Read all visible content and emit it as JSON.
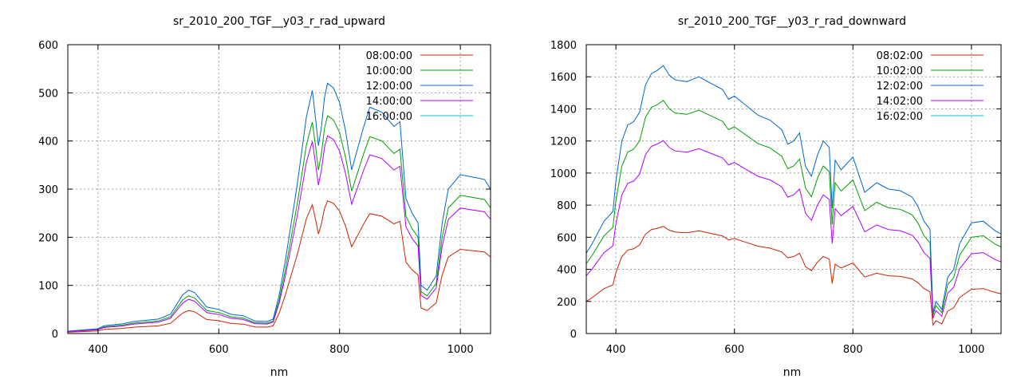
{
  "colors": {
    "s1": "#cc2200",
    "s2": "#00a000",
    "s3": "#0066cc",
    "s4": "#b000ff",
    "s5": "#00c0e0",
    "grid": "#a0a0a0",
    "axis": "#000000"
  },
  "chart_data": [
    {
      "type": "line",
      "title": "sr_2010_200_TGF__y03_r_rad_upward",
      "xlabel": "nm",
      "ylabel": "",
      "xlim": [
        350,
        1050
      ],
      "ylim": [
        0,
        600
      ],
      "xticks": [
        400,
        600,
        800,
        1000
      ],
      "yticks": [
        0,
        100,
        200,
        300,
        400,
        500,
        600
      ],
      "grid": true,
      "legend_position": "top-right",
      "series": [
        {
          "name": "08:00:00",
          "color_key": "s1",
          "scale": 0.53
        },
        {
          "name": "10:00:00",
          "color_key": "s2",
          "scale": 0.87
        },
        {
          "name": "12:00:00",
          "color_key": "s3",
          "scale": 1.0
        },
        {
          "name": "14:00:00",
          "color_key": "s4",
          "scale": 0.79
        },
        {
          "name": "16:00:00",
          "color_key": "s5",
          "scale": 0.0
        }
      ],
      "x": [
        350,
        380,
        400,
        410,
        440,
        460,
        500,
        520,
        540,
        550,
        560,
        580,
        600,
        620,
        640,
        660,
        680,
        690,
        700,
        710,
        730,
        745,
        755,
        760,
        765,
        770,
        775,
        780,
        790,
        800,
        810,
        820,
        840,
        850,
        870,
        890,
        900,
        910,
        920,
        930,
        935,
        945,
        960,
        970,
        980,
        1000,
        1020,
        1040,
        1050
      ],
      "base": [
        5,
        8,
        10,
        16,
        20,
        25,
        30,
        40,
        80,
        90,
        85,
        55,
        50,
        40,
        37,
        26,
        25,
        30,
        80,
        150,
        310,
        450,
        505,
        450,
        390,
        430,
        490,
        520,
        510,
        480,
        420,
        340,
        430,
        470,
        460,
        430,
        440,
        280,
        250,
        230,
        100,
        90,
        120,
        230,
        300,
        330,
        325,
        320,
        300
      ]
    },
    {
      "type": "line",
      "title": "sr_2010_200_TGF__y03_r_rad_downward",
      "xlabel": "nm",
      "ylabel": "",
      "xlim": [
        350,
        1050
      ],
      "ylim": [
        0,
        1800
      ],
      "xticks": [
        400,
        600,
        800,
        1000
      ],
      "yticks": [
        0,
        200,
        400,
        600,
        800,
        1000,
        1200,
        1400,
        1600,
        1800
      ],
      "grid": true,
      "legend_position": "top-right",
      "series": [
        {
          "name": "08:02:00",
          "color_key": "s1",
          "scale": 0.4
        },
        {
          "name": "10:02:00",
          "color_key": "s2",
          "scale": 0.87
        },
        {
          "name": "12:02:00",
          "color_key": "s3",
          "scale": 1.0
        },
        {
          "name": "14:02:00",
          "color_key": "s4",
          "scale": 0.72
        },
        {
          "name": "16:02:00",
          "color_key": "s5",
          "scale": 0.0
        }
      ],
      "x": [
        350,
        360,
        380,
        395,
        400,
        410,
        420,
        430,
        440,
        450,
        460,
        470,
        480,
        490,
        500,
        520,
        540,
        560,
        580,
        590,
        600,
        620,
        640,
        660,
        680,
        690,
        700,
        710,
        720,
        730,
        740,
        750,
        760,
        765,
        770,
        780,
        800,
        820,
        840,
        860,
        880,
        900,
        910,
        920,
        930,
        935,
        940,
        950,
        960,
        970,
        980,
        1000,
        1020,
        1040,
        1050
      ],
      "base": [
        500,
        560,
        700,
        760,
        950,
        1200,
        1300,
        1320,
        1380,
        1550,
        1620,
        1640,
        1670,
        1610,
        1580,
        1570,
        1600,
        1560,
        1520,
        1460,
        1480,
        1420,
        1360,
        1330,
        1270,
        1180,
        1200,
        1250,
        1040,
        980,
        1110,
        1200,
        1160,
        780,
        1080,
        1020,
        1100,
        880,
        940,
        900,
        890,
        850,
        790,
        700,
        650,
        130,
        200,
        150,
        350,
        400,
        560,
        690,
        700,
        640,
        620
      ]
    }
  ]
}
